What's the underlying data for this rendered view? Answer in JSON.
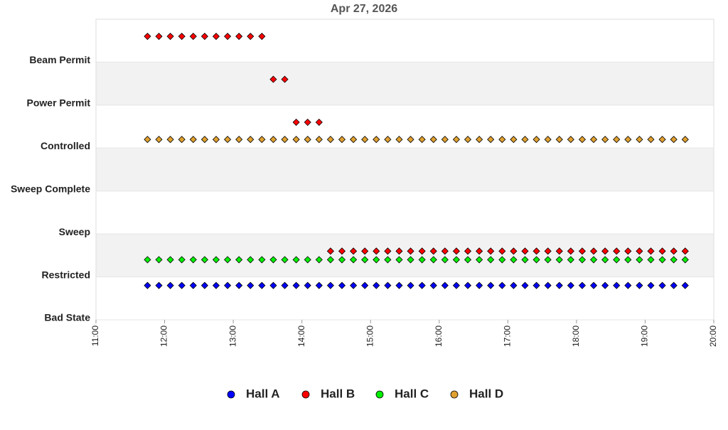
{
  "chart_data": {
    "type": "scatter",
    "title": "Apr 27, 2026",
    "x": [
      "11:45",
      "11:55",
      "12:05",
      "12:15",
      "12:25",
      "12:35",
      "12:45",
      "12:55",
      "13:05",
      "13:15",
      "13:25",
      "13:35",
      "13:45",
      "13:55",
      "14:05",
      "14:15",
      "14:25",
      "14:35",
      "14:45",
      "14:55",
      "15:05",
      "15:15",
      "15:25",
      "15:35",
      "15:45",
      "15:55",
      "16:05",
      "16:15",
      "16:25",
      "16:35",
      "16:45",
      "16:55",
      "17:05",
      "17:15",
      "17:25",
      "17:35",
      "17:45",
      "17:55",
      "18:05",
      "18:15",
      "18:25",
      "18:35",
      "18:45",
      "18:55",
      "19:05",
      "19:15",
      "19:25",
      "19:35"
    ],
    "series": [
      {
        "name": "Hall A",
        "color": "#0000ff",
        "values": [
          0.8,
          0.8,
          0.8,
          0.8,
          0.8,
          0.8,
          0.8,
          0.8,
          0.8,
          0.8,
          0.8,
          0.8,
          0.8,
          0.8,
          0.8,
          0.8,
          0.8,
          0.8,
          0.8,
          0.8,
          0.8,
          0.8,
          0.8,
          0.8,
          0.8,
          0.8,
          0.8,
          0.8,
          0.8,
          0.8,
          0.8,
          0.8,
          0.8,
          0.8,
          0.8,
          0.8,
          0.8,
          0.8,
          0.8,
          0.8,
          0.8,
          0.8,
          0.8,
          0.8,
          0.8,
          0.8,
          0.8,
          0.8
        ]
      },
      {
        "name": "Hall B",
        "color": "#ff0000",
        "values": [
          6.6,
          6.6,
          6.6,
          6.6,
          6.6,
          6.6,
          6.6,
          6.6,
          6.6,
          6.6,
          6.6,
          5.6,
          5.6,
          4.6,
          4.6,
          4.6,
          1.6,
          1.6,
          1.6,
          1.6,
          1.6,
          1.6,
          1.6,
          1.6,
          1.6,
          1.6,
          1.6,
          1.6,
          1.6,
          1.6,
          1.6,
          1.6,
          1.6,
          1.6,
          1.6,
          1.6,
          1.6,
          1.6,
          1.6,
          1.6,
          1.6,
          1.6,
          1.6,
          1.6,
          1.6,
          1.6,
          1.6,
          1.6
        ]
      },
      {
        "name": "Hall C",
        "color": "#00ee00",
        "values": [
          1.4,
          1.4,
          1.4,
          1.4,
          1.4,
          1.4,
          1.4,
          1.4,
          1.4,
          1.4,
          1.4,
          1.4,
          1.4,
          1.4,
          1.4,
          1.4,
          1.4,
          1.4,
          1.4,
          1.4,
          1.4,
          1.4,
          1.4,
          1.4,
          1.4,
          1.4,
          1.4,
          1.4,
          1.4,
          1.4,
          1.4,
          1.4,
          1.4,
          1.4,
          1.4,
          1.4,
          1.4,
          1.4,
          1.4,
          1.4,
          1.4,
          1.4,
          1.4,
          1.4,
          1.4,
          1.4,
          1.4,
          1.4
        ]
      },
      {
        "name": "Hall D",
        "color": "#e0a030",
        "values": [
          4.2,
          4.2,
          4.2,
          4.2,
          4.2,
          4.2,
          4.2,
          4.2,
          4.2,
          4.2,
          4.2,
          4.2,
          4.2,
          4.2,
          4.2,
          4.2,
          4.2,
          4.2,
          4.2,
          4.2,
          4.2,
          4.2,
          4.2,
          4.2,
          4.2,
          4.2,
          4.2,
          4.2,
          4.2,
          4.2,
          4.2,
          4.2,
          4.2,
          4.2,
          4.2,
          4.2,
          4.2,
          4.2,
          4.2,
          4.2,
          4.2,
          4.2,
          4.2,
          4.2,
          4.2,
          4.2,
          4.2,
          4.2
        ]
      }
    ],
    "xlim": [
      "11:00",
      "20:00"
    ],
    "xticks": [
      "11:00",
      "12:00",
      "13:00",
      "14:00",
      "15:00",
      "16:00",
      "17:00",
      "18:00",
      "19:00",
      "20:00"
    ],
    "ylim": [
      0,
      7
    ],
    "yticks": [
      {
        "value": 0,
        "label": "Bad State"
      },
      {
        "value": 1,
        "label": "Restricted"
      },
      {
        "value": 2,
        "label": "Sweep"
      },
      {
        "value": 3,
        "label": "Sweep Complete"
      },
      {
        "value": 4,
        "label": "Controlled"
      },
      {
        "value": 5,
        "label": "Power Permit"
      },
      {
        "value": 6,
        "label": "Beam Permit"
      }
    ],
    "grid": true,
    "legend": "bottom"
  }
}
